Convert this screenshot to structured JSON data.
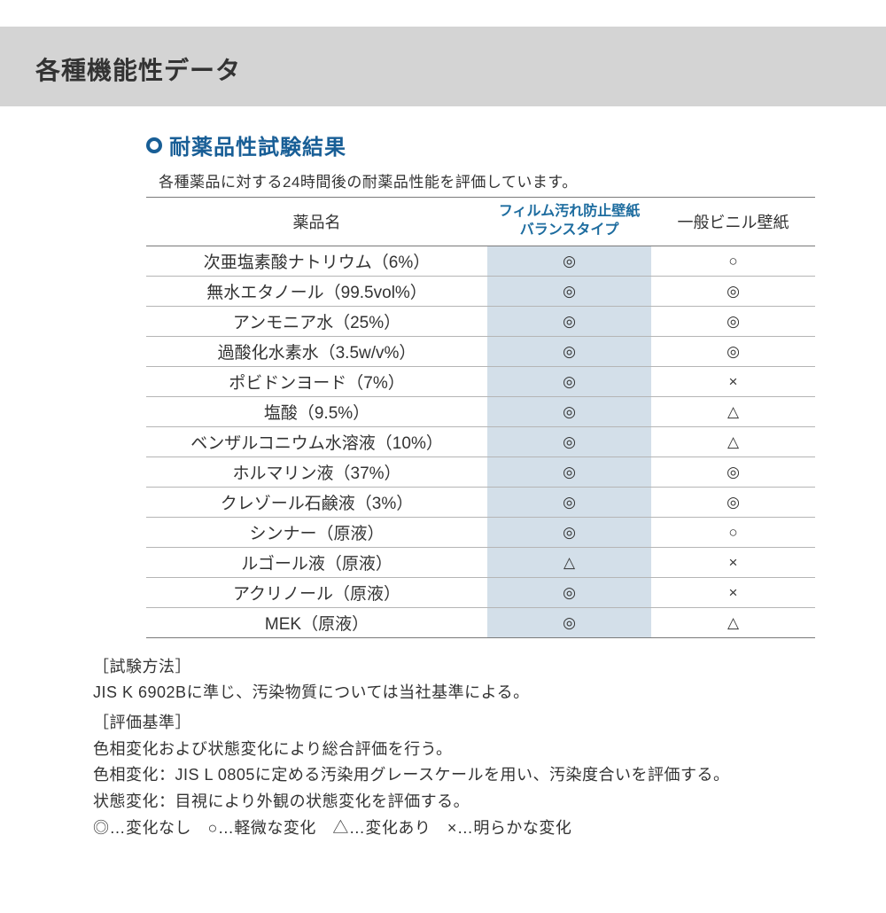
{
  "header": {
    "title": "各種機能性データ"
  },
  "section": {
    "title": "耐薬品性試験結果",
    "description": "各種薬品に対する24時間後の耐薬品性能を評価しています。"
  },
  "table": {
    "columns": {
      "name": "薬品名",
      "col2_line1": "フィルム汚れ防止壁紙",
      "col2_line2": "バランスタイプ",
      "col3": "一般ビニル壁紙"
    },
    "rows": [
      {
        "name": "次亜塩素酸ナトリウム（6%）",
        "a": "◎",
        "b": "○"
      },
      {
        "name": "無水エタノール（99.5vol%）",
        "a": "◎",
        "b": "◎"
      },
      {
        "name": "アンモニア水（25%）",
        "a": "◎",
        "b": "◎"
      },
      {
        "name": "過酸化水素水（3.5w/v%）",
        "a": "◎",
        "b": "◎"
      },
      {
        "name": "ポビドンヨード（7%）",
        "a": "◎",
        "b": "×"
      },
      {
        "name": "塩酸（9.5%）",
        "a": "◎",
        "b": "△"
      },
      {
        "name": "ベンザルコニウム水溶液（10%）",
        "a": "◎",
        "b": "△"
      },
      {
        "name": "ホルマリン液（37%）",
        "a": "◎",
        "b": "◎"
      },
      {
        "name": "クレゾール石鹸液（3%）",
        "a": "◎",
        "b": "◎"
      },
      {
        "name": "シンナー（原液）",
        "a": "◎",
        "b": "○"
      },
      {
        "name": "ルゴール液（原液）",
        "a": "△",
        "b": "×"
      },
      {
        "name": "アクリノール（原液）",
        "a": "◎",
        "b": "×"
      },
      {
        "name": "MEK（原液）",
        "a": "◎",
        "b": "△"
      }
    ]
  },
  "notes": {
    "method_label": "［試験方法］",
    "method_text": "JIS K 6902Bに準じ、汚染物質については当社基準による。",
    "criteria_label": "［評価基準］",
    "criteria_text": "色相変化および状態変化により総合評価を行う。",
    "hue_text": "色相変化：JIS L 0805に定める汚染用グレースケールを用い、汚染度合いを評価する。",
    "state_text": "状態変化：目視により外観の状態変化を評価する。",
    "legend": "◎…変化なし　○…軽微な変化　△…変化あり　×…明らかな変化"
  },
  "colors": {
    "header_band": "#d4d4d4",
    "accent": "#185e96",
    "col2_bg": "#d3dfe9",
    "border_strong": "#7a7a7a",
    "border_light": "#b5b5b5",
    "text": "#333333",
    "background": "#ffffff"
  }
}
